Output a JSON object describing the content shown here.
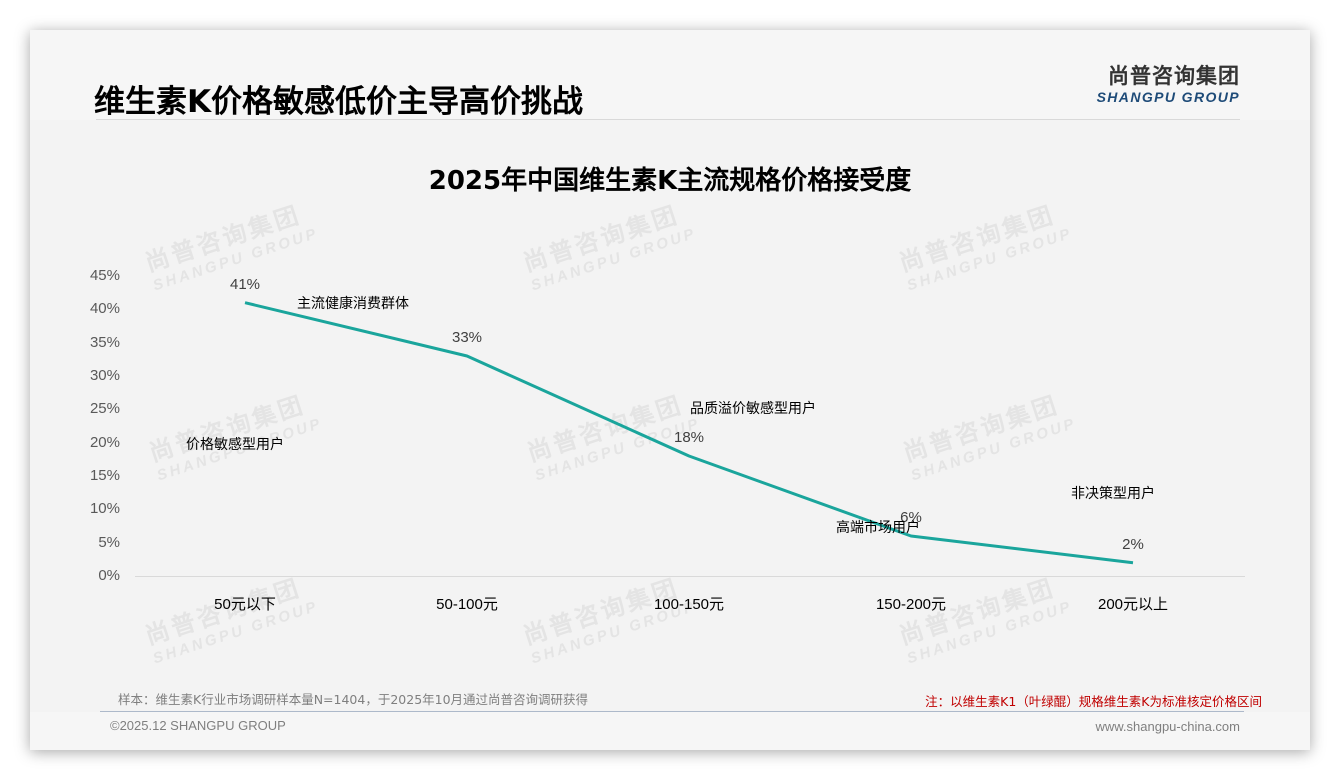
{
  "header": {
    "title": "维生素K价格敏感低价主导高价挑战",
    "logo_cn": "尚普咨询集团",
    "logo_en": "SHANGPU GROUP"
  },
  "watermark": {
    "cn": "尚普咨询集团",
    "en": "SHANGPU GROUP"
  },
  "chart_data": {
    "type": "line",
    "title": "2025年中国维生素K主流规格价格接受度",
    "xlabel": "",
    "ylabel": "",
    "categories": [
      "50元以下",
      "50-100元",
      "100-150元",
      "150-200元",
      "200元以上"
    ],
    "series": [
      {
        "name": "价格接受度",
        "values": [
          41,
          33,
          18,
          6,
          2
        ],
        "color": "#1aa59c"
      }
    ],
    "data_labels": [
      "41%",
      "33%",
      "18%",
      "6%",
      "2%"
    ],
    "y_ticks": [
      "0%",
      "5%",
      "10%",
      "15%",
      "20%",
      "25%",
      "30%",
      "35%",
      "40%",
      "45%"
    ],
    "ylim": [
      0,
      45
    ],
    "grid": false,
    "legend": "none",
    "annotations": [
      {
        "text": "价格敏感型用户",
        "near": "50元以下"
      },
      {
        "text": "主流健康消费群体",
        "near": "50-100元"
      },
      {
        "text": "品质溢价敏感型用户",
        "near": "100-150元"
      },
      {
        "text": "高端市场用户",
        "near": "150-200元"
      },
      {
        "text": "非决策型用户",
        "near": "200元以上"
      }
    ]
  },
  "footer": {
    "sample_note": "样本：维生素K行业市场调研样本量N=1404，于2025年10月通过尚普咨询调研获得",
    "right_note": "注：以维生素K1（叶绿醌）规格维生素K为标准核定价格区间",
    "copyright": "©2025.12 SHANGPU GROUP",
    "website": "www.shangpu-china.com"
  }
}
